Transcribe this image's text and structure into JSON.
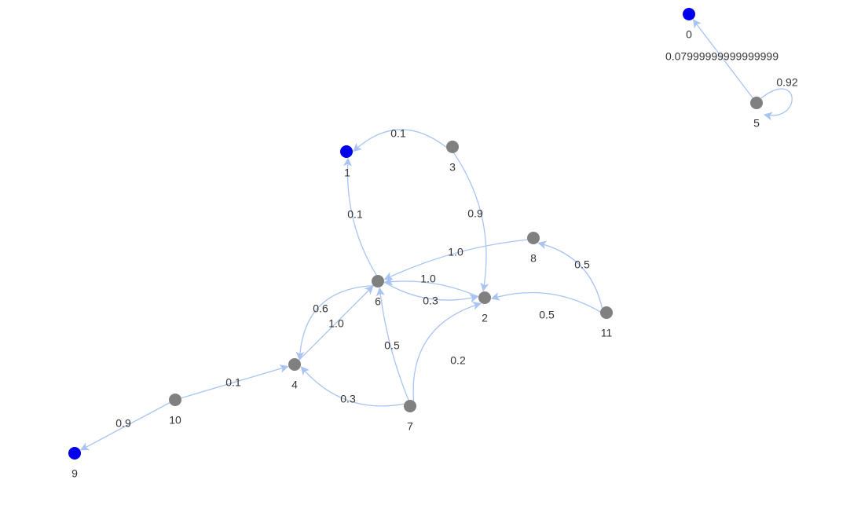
{
  "graph": {
    "colors": {
      "absorbing_node": "#0000ee",
      "transient_node": "#808080",
      "edge": "#a9c4f2",
      "text": "#333333"
    },
    "nodes": [
      {
        "id": "0",
        "label": "0",
        "type": "absorbing"
      },
      {
        "id": "1",
        "label": "1",
        "type": "absorbing"
      },
      {
        "id": "2",
        "label": "2",
        "type": "transient"
      },
      {
        "id": "3",
        "label": "3",
        "type": "transient"
      },
      {
        "id": "4",
        "label": "4",
        "type": "transient"
      },
      {
        "id": "5",
        "label": "5",
        "type": "transient"
      },
      {
        "id": "6",
        "label": "6",
        "type": "transient"
      },
      {
        "id": "7",
        "label": "7",
        "type": "transient"
      },
      {
        "id": "8",
        "label": "8",
        "type": "transient"
      },
      {
        "id": "9",
        "label": "9",
        "type": "absorbing"
      },
      {
        "id": "10",
        "label": "10",
        "type": "transient"
      },
      {
        "id": "11",
        "label": "11",
        "type": "transient"
      }
    ],
    "edges": [
      {
        "from": "5",
        "to": "0",
        "label": "0.07999999999999999"
      },
      {
        "from": "5",
        "to": "5",
        "label": "0.92"
      },
      {
        "from": "3",
        "to": "1",
        "label": "0.1"
      },
      {
        "from": "3",
        "to": "2",
        "label": "0.9"
      },
      {
        "from": "6",
        "to": "1",
        "label": "0.1"
      },
      {
        "from": "8",
        "to": "6",
        "label": "1.0"
      },
      {
        "from": "2",
        "to": "6",
        "label": "1.0"
      },
      {
        "from": "6",
        "to": "2",
        "label": "0.3"
      },
      {
        "from": "11",
        "to": "8",
        "label": "0.5"
      },
      {
        "from": "11",
        "to": "2",
        "label": "0.5"
      },
      {
        "from": "6",
        "to": "4",
        "label": "0.6"
      },
      {
        "from": "4",
        "to": "6",
        "label": "1.0"
      },
      {
        "from": "7",
        "to": "6",
        "label": "0.5"
      },
      {
        "from": "7",
        "to": "2",
        "label": "0.2"
      },
      {
        "from": "7",
        "to": "4",
        "label": "0.3"
      },
      {
        "from": "10",
        "to": "4",
        "label": "0.1"
      },
      {
        "from": "10",
        "to": "9",
        "label": "0.9"
      }
    ]
  }
}
